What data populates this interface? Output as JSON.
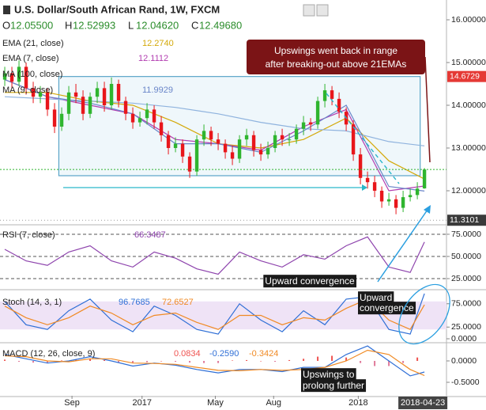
{
  "header": {
    "title": "U.S. Dollar/South African Rand, 1W, FXCM",
    "items": [
      {
        "letter": "O",
        "value": "12.05500"
      },
      {
        "letter": "H",
        "value": "12.52993"
      },
      {
        "letter": "L",
        "value": "12.04620"
      },
      {
        "letter": "C",
        "value": "12.49680"
      }
    ]
  },
  "chart_data": [
    {
      "type": "candlestick",
      "xlim": [
        -0.67,
        62.1
      ],
      "ylim": [
        11.222,
        16.463
      ],
      "yticks": [
        {
          "value": 16,
          "label": "16.00000"
        },
        {
          "value": 15,
          "label": "15.00000"
        },
        {
          "value": 14,
          "label": "14.00000"
        },
        {
          "value": 13,
          "label": "13.00000"
        },
        {
          "value": 12,
          "label": "12.00000"
        }
      ],
      "candles": {
        "up_color": "#2fb52f",
        "down_color": "#e8161b",
        "x": [
          0,
          1,
          2,
          3,
          4,
          5,
          6,
          7,
          8,
          9,
          10,
          11,
          12,
          13,
          14,
          15,
          16,
          17,
          18,
          19,
          20,
          21,
          22,
          23,
          24,
          25,
          26,
          27,
          28,
          29,
          30,
          31,
          32,
          33,
          34,
          35,
          36,
          37,
          38,
          39,
          40,
          41,
          42,
          43,
          44,
          45,
          46,
          47,
          48,
          49,
          50,
          51,
          52,
          53,
          54,
          55,
          56,
          57,
          58,
          59
        ],
        "open": [
          14.6,
          14.75,
          14.55,
          14.9,
          14.4,
          14.2,
          14.3,
          13.9,
          13.5,
          13.8,
          14.3,
          14.2,
          13.8,
          14.2,
          14.4,
          14.0,
          14.5,
          14.1,
          13.8,
          13.6,
          13.7,
          13.9,
          13.6,
          13.3,
          13.0,
          13.1,
          12.8,
          12.45,
          13.2,
          13.4,
          13.2,
          13.1,
          12.9,
          12.75,
          13.2,
          13.3,
          12.95,
          12.85,
          13.0,
          13.3,
          13.2,
          13.2,
          13.45,
          13.6,
          13.55,
          14.1,
          14.35,
          14.15,
          13.85,
          13.55,
          12.85,
          12.3,
          12.2,
          12.0,
          11.75,
          11.8,
          11.6,
          11.85,
          11.9,
          12.055
        ],
        "high": [
          14.9,
          14.9,
          15.05,
          15.0,
          14.55,
          14.45,
          14.4,
          14.05,
          13.95,
          14.45,
          14.5,
          14.35,
          14.3,
          14.55,
          14.55,
          14.65,
          14.6,
          14.2,
          13.95,
          13.85,
          14.05,
          14.0,
          13.75,
          13.4,
          13.25,
          13.2,
          12.9,
          13.3,
          13.55,
          13.5,
          13.35,
          13.2,
          13.05,
          13.3,
          13.45,
          13.4,
          13.1,
          13.15,
          13.4,
          13.45,
          13.35,
          13.55,
          13.75,
          13.7,
          14.2,
          14.5,
          14.45,
          14.3,
          13.95,
          13.65,
          13.0,
          12.45,
          12.35,
          12.1,
          11.95,
          11.9,
          12.0,
          12.05,
          12.2,
          12.52993
        ],
        "low": [
          14.45,
          14.4,
          14.45,
          14.25,
          14.05,
          14.05,
          13.75,
          13.35,
          13.4,
          13.65,
          14.05,
          13.65,
          13.7,
          14.05,
          13.85,
          13.9,
          13.95,
          13.65,
          13.45,
          13.5,
          13.55,
          13.45,
          13.15,
          12.85,
          12.9,
          12.65,
          12.3,
          12.35,
          13.05,
          13.05,
          12.95,
          12.75,
          12.6,
          12.65,
          13.05,
          12.8,
          12.7,
          12.75,
          12.9,
          13.05,
          13.05,
          13.1,
          13.3,
          13.4,
          13.45,
          13.95,
          14.0,
          13.7,
          13.4,
          12.7,
          12.15,
          12.05,
          11.85,
          11.6,
          11.65,
          11.45,
          11.5,
          11.75,
          11.8,
          12.0462
        ],
        "close": [
          14.75,
          14.55,
          14.9,
          14.4,
          14.2,
          14.3,
          13.9,
          13.5,
          13.8,
          14.3,
          14.2,
          13.8,
          14.2,
          14.4,
          14.0,
          14.5,
          14.1,
          13.8,
          13.6,
          13.7,
          13.9,
          13.6,
          13.3,
          13.0,
          13.1,
          12.8,
          12.45,
          13.2,
          13.4,
          13.2,
          13.1,
          12.9,
          12.75,
          13.2,
          13.3,
          12.95,
          12.85,
          13.0,
          13.3,
          13.2,
          13.2,
          13.45,
          13.6,
          13.55,
          14.1,
          14.35,
          14.15,
          13.85,
          13.55,
          12.85,
          12.3,
          12.2,
          12.0,
          11.75,
          11.8,
          11.6,
          11.85,
          11.9,
          12.05,
          12.4968
        ]
      },
      "series": [
        {
          "name": "EMA (21, close)",
          "readout": "12.2740",
          "color": "#d4a90a",
          "x": [
            0,
            6,
            12,
            18,
            24,
            30,
            36,
            42,
            48,
            54,
            59
          ],
          "values": [
            14.3,
            14.3,
            14.1,
            14.0,
            13.6,
            13.1,
            13.0,
            13.2,
            13.7,
            12.7,
            12.274
          ]
        },
        {
          "name": "EMA (7, close)",
          "readout": "12.1112",
          "color": "#b23cb0",
          "x": [
            0,
            6,
            12,
            18,
            24,
            30,
            36,
            42,
            48,
            54,
            59
          ],
          "values": [
            14.6,
            14.2,
            14.0,
            13.8,
            13.2,
            13.1,
            12.95,
            13.5,
            13.9,
            12.0,
            12.111
          ]
        },
        {
          "name": "MA (100, close)",
          "color": "#8fb3de",
          "x": [
            0,
            6,
            12,
            18,
            24,
            30,
            36,
            42,
            48,
            54,
            59
          ],
          "values": [
            14.2,
            14.15,
            14.1,
            14.05,
            13.95,
            13.8,
            13.6,
            13.45,
            13.4,
            13.15,
            13.05
          ]
        },
        {
          "name": "MA (9, close)",
          "readout": "11.9929",
          "color": "#6a86c9",
          "x": [
            0,
            6,
            12,
            18,
            24,
            30,
            36,
            42,
            48,
            54,
            59
          ],
          "values": [
            14.6,
            14.2,
            14.05,
            13.8,
            13.1,
            13.1,
            12.9,
            13.4,
            14.0,
            12.1,
            11.993
          ]
        }
      ],
      "range_box": {
        "top": 14.6729,
        "bottom": 12.352,
        "x": [
          7.6,
          58.4
        ],
        "color": "#5aa5c8"
      },
      "price_tags": [
        11.3101
      ],
      "annotation": [
        "Upswings went back in range",
        "after breaking-out above 21EMAs"
      ]
    },
    {
      "type": "line",
      "title": "RSI (7, close)",
      "xlim": [
        -0.67,
        62.1
      ],
      "ylim": [
        13.4,
        84.8
      ],
      "grid_dashed": true,
      "yticks": [
        {
          "value": 75,
          "label": "75.0000"
        },
        {
          "value": 50,
          "label": "50.0000"
        },
        {
          "value": 25,
          "label": "25.0000"
        }
      ],
      "series": [
        {
          "readout": "66.3487",
          "color": "#8e44ad",
          "x": [
            0,
            3,
            6,
            9,
            12,
            15,
            18,
            21,
            24,
            27,
            30,
            33,
            36,
            39,
            42,
            45,
            48,
            51,
            54,
            57,
            59
          ],
          "values": [
            58,
            45,
            40,
            55,
            62,
            45,
            38,
            55,
            48,
            36,
            30,
            55,
            45,
            38,
            52,
            47,
            62,
            72,
            38,
            32,
            66.35
          ]
        }
      ],
      "annotation": [
        "Upward convergence"
      ]
    },
    {
      "type": "line",
      "title": "Stoch (14, 3, 1)",
      "xlim": [
        -0.67,
        62.1
      ],
      "ylim": [
        -6.8,
        103.4
      ],
      "band": [
        20,
        80
      ],
      "band_color": "#efe3f6",
      "yticks": [
        {
          "value": 75,
          "label": "75.0000"
        },
        {
          "value": 25,
          "label": "25.0000"
        },
        {
          "value": 0,
          "label": "0.0000"
        }
      ],
      "series": [
        {
          "readout": "96.7685",
          "color": "#2f6fd6",
          "x": [
            0,
            3,
            6,
            9,
            12,
            15,
            18,
            21,
            24,
            27,
            30,
            33,
            36,
            39,
            42,
            45,
            48,
            51,
            54,
            57,
            59
          ],
          "values": [
            80,
            30,
            20,
            60,
            85,
            40,
            15,
            70,
            50,
            20,
            10,
            75,
            40,
            15,
            60,
            30,
            85,
            90,
            20,
            10,
            96.77
          ]
        },
        {
          "readout": "72.6527",
          "color": "#f08a24",
          "x": [
            0,
            3,
            6,
            9,
            12,
            15,
            18,
            21,
            24,
            27,
            30,
            33,
            36,
            39,
            42,
            45,
            48,
            51,
            54,
            57,
            59
          ],
          "values": [
            70,
            45,
            30,
            45,
            70,
            55,
            30,
            50,
            55,
            35,
            20,
            50,
            50,
            30,
            45,
            40,
            65,
            85,
            40,
            20,
            72.65
          ]
        }
      ],
      "annotation": [
        "Upward",
        "convergence"
      ]
    },
    {
      "type": "macd",
      "title": "MACD (12, 26, close, 9)",
      "xlim": [
        -0.67,
        62.1
      ],
      "ylim": [
        -0.815,
        0.407
      ],
      "yticks": [
        {
          "value": 0,
          "label": "0.0000"
        },
        {
          "value": -0.5,
          "label": "-0.5000"
        }
      ],
      "xticks": [
        {
          "value": 9.45,
          "label": "Sep"
        },
        {
          "value": 19.3,
          "label": "2017"
        },
        {
          "value": 29.6,
          "label": "May"
        },
        {
          "value": 37.8,
          "label": "Aug"
        },
        {
          "value": 49.7,
          "label": "2018"
        }
      ],
      "current_x": {
        "value": 59,
        "label": "2018-04-23"
      },
      "histogram": {
        "readout": "0.0834",
        "positive_color": "#ef5350",
        "negative_color": "#e07a9a",
        "x": [
          0,
          2,
          4,
          6,
          8,
          10,
          12,
          14,
          16,
          18,
          20,
          22,
          24,
          26,
          28,
          30,
          32,
          34,
          36,
          38,
          40,
          42,
          44,
          46,
          48,
          50,
          52,
          54,
          56,
          58
        ],
        "values": [
          0.03,
          -0.02,
          -0.04,
          -0.05,
          0.01,
          0.03,
          0.04,
          0.02,
          -0.03,
          -0.05,
          -0.03,
          0.0,
          -0.02,
          -0.04,
          -0.05,
          -0.05,
          0.01,
          0.02,
          0.0,
          -0.02,
          0.02,
          0.05,
          0.1,
          0.12,
          0.08,
          -0.05,
          -0.12,
          -0.12,
          -0.05,
          0.08
        ]
      },
      "series": [
        {
          "readout": "-0.2590",
          "color": "#2f6fd6",
          "x": [
            0,
            3,
            6,
            9,
            12,
            15,
            18,
            21,
            24,
            27,
            30,
            33,
            36,
            39,
            42,
            45,
            48,
            51,
            54,
            57,
            59
          ],
          "values": [
            0.15,
            0.05,
            -0.05,
            0.0,
            0.1,
            0.0,
            -0.12,
            -0.05,
            -0.1,
            -0.2,
            -0.28,
            -0.2,
            -0.2,
            -0.25,
            -0.15,
            -0.15,
            0.15,
            0.35,
            0.0,
            -0.35,
            -0.259
          ]
        },
        {
          "readout": "-0.3424",
          "color": "#f08a24",
          "x": [
            0,
            3,
            6,
            9,
            12,
            15,
            18,
            21,
            24,
            27,
            30,
            33,
            36,
            39,
            42,
            45,
            48,
            51,
            54,
            57,
            59
          ],
          "values": [
            0.12,
            0.1,
            0.0,
            -0.02,
            0.05,
            0.05,
            -0.05,
            -0.06,
            -0.08,
            -0.15,
            -0.22,
            -0.23,
            -0.2,
            -0.22,
            -0.2,
            -0.15,
            0.0,
            0.25,
            0.15,
            -0.2,
            -0.342
          ]
        }
      ],
      "annotation": [
        "Upswings to",
        "prolong further"
      ]
    }
  ]
}
